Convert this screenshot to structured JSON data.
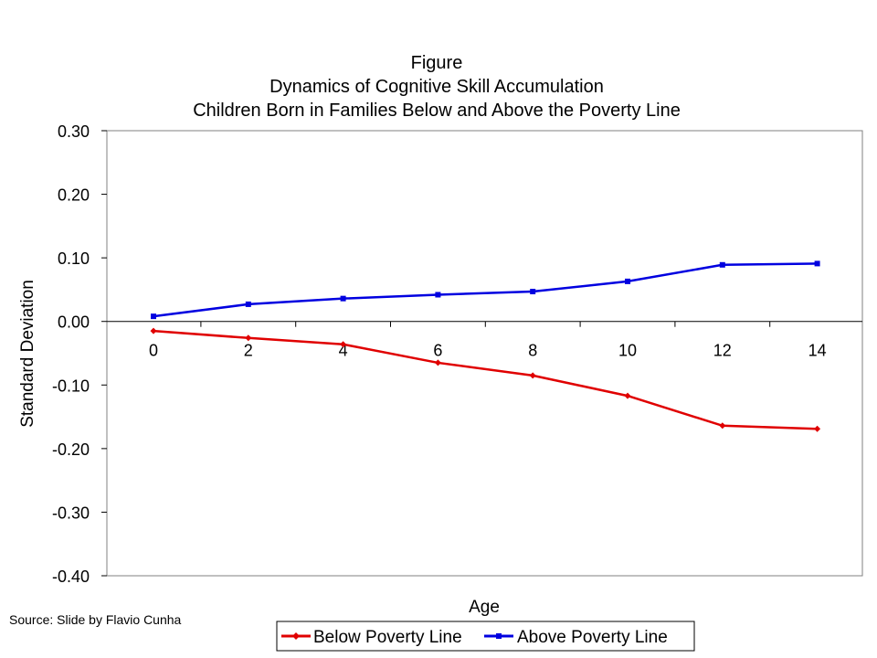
{
  "chart_data": {
    "type": "line",
    "title": [
      "Figure",
      "Dynamics of Cognitive Skill Accumulation",
      "Children Born in Families Below and Above the Poverty Line"
    ],
    "xlabel": "Age",
    "ylabel": "Standard Deviation",
    "x": [
      0,
      2,
      4,
      6,
      8,
      10,
      12,
      14
    ],
    "xticks": [
      "0",
      "2",
      "4",
      "6",
      "8",
      "10",
      "12",
      "14"
    ],
    "ylim": [
      -0.4,
      0.3
    ],
    "yticks": [
      "0.30",
      "0.20",
      "0.10",
      "0.00",
      "-0.10",
      "-0.20",
      "-0.30",
      "-0.40"
    ],
    "grid": false,
    "legend_position": "bottom",
    "series": [
      {
        "name": "Below Poverty Line",
        "color": "#e00000",
        "marker": "diamond",
        "values": [
          -0.015,
          -0.026,
          -0.036,
          -0.065,
          -0.085,
          -0.117,
          -0.164,
          -0.169
        ]
      },
      {
        "name": "Above Poverty Line",
        "color": "#0000e0",
        "marker": "square",
        "values": [
          0.008,
          0.027,
          0.036,
          0.042,
          0.047,
          0.063,
          0.089,
          0.091
        ]
      }
    ]
  },
  "source": "Source: Slide by Flavio Cunha"
}
